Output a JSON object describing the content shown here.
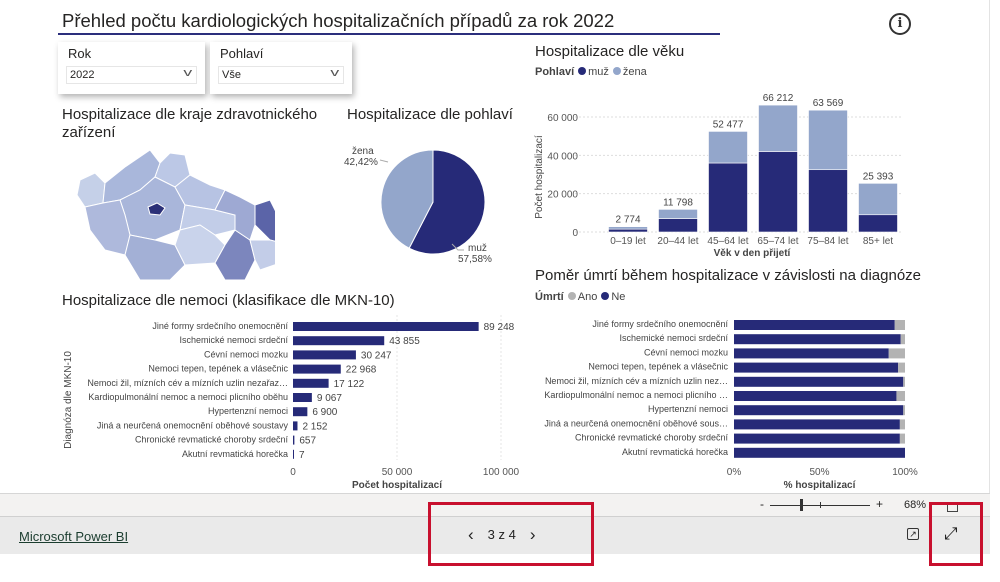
{
  "header": {
    "title": "Přehled počtu kardiologických hospitalizačních případů za rok 2022",
    "info_icon": "info-icon"
  },
  "slicers": [
    {
      "label": "Rok",
      "value": "2022"
    },
    {
      "label": "Pohlaví",
      "value": "Vše"
    }
  ],
  "map": {
    "title": "Hospitalizace dle kraje zdravotnického zařízení"
  },
  "colors": {
    "muz": "#262a78",
    "zena": "#93a6cb",
    "ano": "#b3b3b3",
    "ne": "#262a78"
  },
  "pie": {
    "title": "Hospitalizace dle pohlaví",
    "slices": [
      {
        "label": "muž",
        "pct_label": "57,58%",
        "value": 57.58
      },
      {
        "label": "žena",
        "pct_label": "42,42%",
        "value": 42.42
      }
    ]
  },
  "chart_data": [
    {
      "type": "bar",
      "stacked": true,
      "title": "Hospitalizace dle věku",
      "legend_title": "Pohlaví",
      "legend": [
        "muž",
        "žena"
      ],
      "xlabel": "Věk v den přijetí",
      "ylabel": "Počet hospitalizací",
      "ylim": [
        0,
        70000
      ],
      "yticks": [
        0,
        20000,
        40000,
        60000
      ],
      "ytick_labels": [
        "0",
        "20 000",
        "40 000",
        "60 000"
      ],
      "categories": [
        "0–19 let",
        "20–44 let",
        "45–64 let",
        "65–74 let",
        "75–84 let",
        "85+ let"
      ],
      "totals": [
        2774,
        11798,
        52477,
        66212,
        63569,
        25393
      ],
      "total_labels": [
        "2 774",
        "11 798",
        "52 477",
        "66 212",
        "63 569",
        "25 393"
      ],
      "series": [
        {
          "name": "muž",
          "values": [
            1500,
            7000,
            36000,
            42000,
            32500,
            9000
          ]
        },
        {
          "name": "žena",
          "values": [
            1274,
            4798,
            16477,
            24212,
            31069,
            16393
          ]
        }
      ]
    },
    {
      "type": "bar",
      "orientation": "horizontal",
      "title": "Hospitalizace dle nemoci (klasifikace dle MKN-10)",
      "xlabel": "Počet hospitalizací",
      "ylabel": "Diagnóza dle MKN-10",
      "xlim": [
        0,
        100000
      ],
      "xticks": [
        0,
        50000,
        100000
      ],
      "xtick_labels": [
        "0",
        "50 000",
        "100 000"
      ],
      "categories": [
        "Jiné formy srdečního onemocnění",
        "Ischemické nemoci srdeční",
        "Cévní nemoci mozku",
        "Nemoci tepen, tepének a vlásečnic",
        "Nemoci žil, mízních cév a mízních uzlin nezařaz…",
        "Kardiopulmonální nemoc a nemoci plicního oběhu",
        "Hypertenzní nemoci",
        "Jiná a neurčená onemocnění oběhové soustavy",
        "Chronické revmatické choroby srdeční",
        "Akutní revmatická horečka"
      ],
      "values": [
        89248,
        43855,
        30247,
        22968,
        17122,
        9067,
        6900,
        2152,
        657,
        7
      ],
      "value_labels": [
        "89 248",
        "43 855",
        "30 247",
        "22 968",
        "17 122",
        "9 067",
        "6 900",
        "2 152",
        "657",
        "7"
      ]
    },
    {
      "type": "bar",
      "orientation": "horizontal",
      "stacked": true,
      "title": "Poměr úmrtí během hospitalizace v závislosti na diagnóze",
      "legend_title": "Úmrtí",
      "legend": [
        "Ano",
        "Ne"
      ],
      "xlabel": "% hospitalizací",
      "xlim": [
        0,
        100
      ],
      "xticks": [
        0,
        50,
        100
      ],
      "xtick_labels": [
        "0%",
        "50%",
        "100%"
      ],
      "categories": [
        "Jiné formy srdečního onemocnění",
        "Ischemické nemoci srdeční",
        "Cévní nemoci mozku",
        "Nemoci tepen, tepének a vlásečnic",
        "Nemoci žil, mízních cév a mízních uzlin nez…",
        "Kardiopulmonální nemoc a nemoci plicního …",
        "Hypertenzní nemoci",
        "Jiná a neurčená onemocnění oběhové sous…",
        "Chronické revmatické choroby srdeční",
        "Akutní revmatická horečka"
      ],
      "series": [
        {
          "name": "Ne",
          "values": [
            94,
            97.5,
            90.5,
            96,
            99,
            95,
            99,
            97,
            97,
            100
          ]
        },
        {
          "name": "Ano",
          "values": [
            6,
            2.5,
            9.5,
            4,
            1,
            5,
            1,
            3,
            3,
            0
          ]
        }
      ]
    }
  ],
  "toolbar": {
    "zoom_minus": "-",
    "zoom_plus": "+",
    "zoom_level": "68%",
    "zoom_fraction": 0.3
  },
  "footer": {
    "brand_link": "Microsoft Power BI",
    "prev": "‹",
    "page": "3 z 4",
    "next": "›"
  }
}
